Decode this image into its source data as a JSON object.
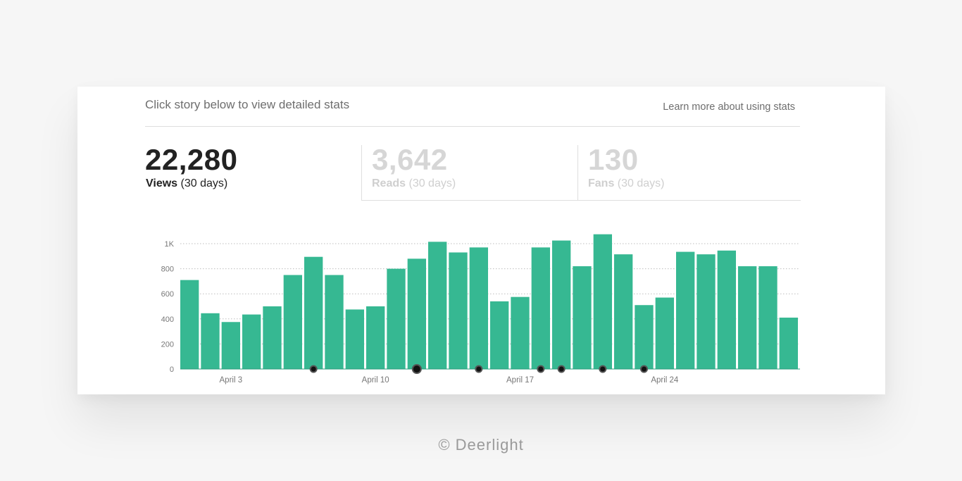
{
  "header": {
    "hint": "Click story below to view detailed stats",
    "learn_more": "Learn more about using stats"
  },
  "stats": {
    "views": {
      "value": "22,280",
      "label": "Views",
      "period": "(30 days)"
    },
    "reads": {
      "value": "3,642",
      "label": "Reads",
      "period": "(30 days)"
    },
    "fans": {
      "value": "130",
      "label": "Fans",
      "period": "(30 days)"
    }
  },
  "footer": {
    "text": "© Deerlight"
  },
  "colors": {
    "bar": "#36b892",
    "marker": "#111111",
    "grid": "#bdbdbd"
  },
  "chart_data": {
    "type": "bar",
    "title": "",
    "xlabel": "",
    "ylabel": "",
    "ylim": [
      0,
      1000
    ],
    "y_ticks": [
      0,
      200,
      400,
      600,
      800,
      1000
    ],
    "y_tick_labels": [
      "0",
      "200",
      "400",
      "600",
      "800",
      "1K"
    ],
    "x": [
      "Apr 1",
      "Apr 2",
      "Apr 3",
      "Apr 4",
      "Apr 5",
      "Apr 6",
      "Apr 7",
      "Apr 8",
      "Apr 9",
      "Apr 10",
      "Apr 11",
      "Apr 12",
      "Apr 13",
      "Apr 14",
      "Apr 15",
      "Apr 16",
      "Apr 17",
      "Apr 18",
      "Apr 19",
      "Apr 20",
      "Apr 21",
      "Apr 22",
      "Apr 23",
      "Apr 24",
      "Apr 25",
      "Apr 26",
      "Apr 27",
      "Apr 28",
      "Apr 29",
      "Apr 30"
    ],
    "x_tick_labels": [
      {
        "index": 2,
        "label": "April 3"
      },
      {
        "index": 9,
        "label": "April 10"
      },
      {
        "index": 16,
        "label": "April 17"
      },
      {
        "index": 23,
        "label": "April 24"
      }
    ],
    "values": [
      710,
      445,
      375,
      435,
      500,
      750,
      895,
      750,
      475,
      500,
      800,
      880,
      1015,
      930,
      970,
      540,
      575,
      970,
      1025,
      820,
      1075,
      915,
      510,
      570,
      935,
      915,
      945,
      820,
      820,
      410
    ],
    "markers": [
      {
        "index": 6
      },
      {
        "index": 11,
        "large": true
      },
      {
        "index": 14
      },
      {
        "index": 17
      },
      {
        "index": 18
      },
      {
        "index": 20
      },
      {
        "index": 22
      }
    ],
    "grid": true
  }
}
